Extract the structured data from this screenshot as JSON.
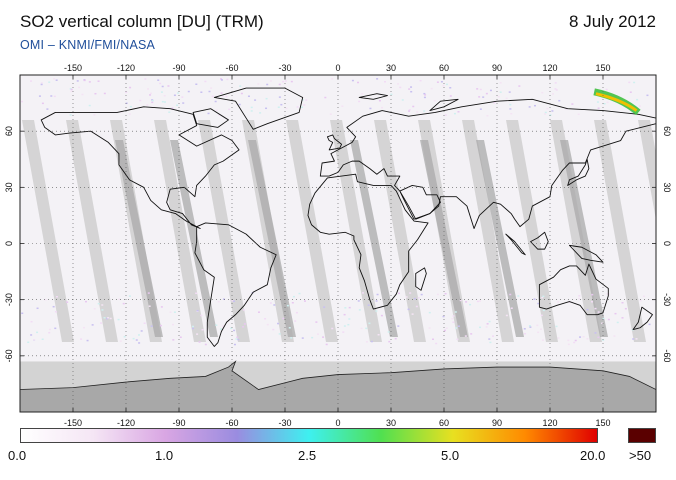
{
  "header": {
    "title": "SO2 vertical column [DU] (TRM)",
    "date": "8 July 2012",
    "credit": "OMI  –  KNMI/FMI/NASA"
  },
  "map": {
    "projection": "equirectangular",
    "lon_range": [
      -180,
      180
    ],
    "lat_range": [
      -90,
      90
    ],
    "lon_ticks": [
      "-150",
      "-120",
      "-90",
      "-60",
      "-30",
      "0",
      "30",
      "60",
      "90",
      "120",
      "150"
    ],
    "lat_ticks": [
      "60",
      "30",
      "0",
      "-30",
      "-60"
    ],
    "grid": true,
    "no_data_color": "#d3d3d3",
    "ocean_color": "#f4f2f6",
    "orbit_gap_color": "#cfcfcf"
  },
  "colorbar": {
    "labels": [
      "0.0",
      "1.0",
      "2.5",
      "5.0",
      "20.0"
    ],
    "overflow_label": ">50",
    "overflow_color": "#5a0000",
    "stops": [
      "#ffffff",
      "#f5e6f5",
      "#d9a6e3",
      "#9a8ce0",
      "#3ef0f0",
      "#50e050",
      "#e8e020",
      "#ff8a00",
      "#e00000"
    ]
  }
}
